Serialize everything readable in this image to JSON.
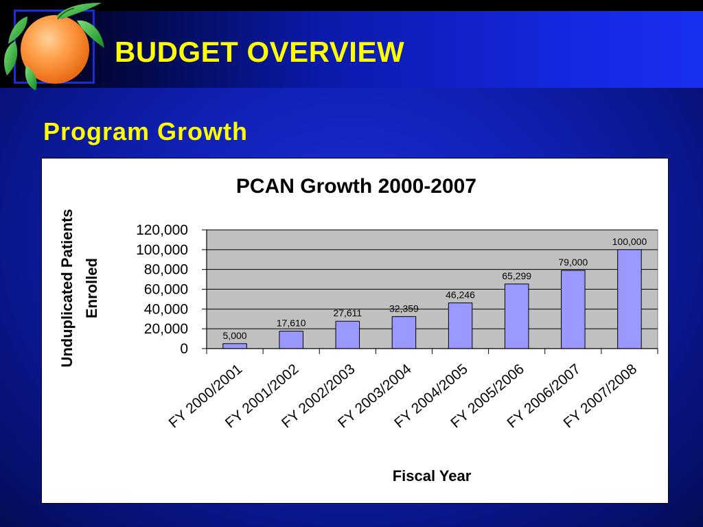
{
  "slide": {
    "title": "BUDGET OVERVIEW",
    "subtitle": "Program Growth"
  },
  "colors": {
    "title_text": "#ffff00",
    "bar_fill": "#9999ff",
    "plot_background": "#c0c0c0"
  },
  "icons": {
    "logo": "orange-fruit-with-leaves-icon"
  },
  "chart_data": {
    "type": "bar",
    "title": "PCAN Growth 2000-2007",
    "xlabel": "Fiscal Year",
    "ylabel_lines": [
      "Unduplicated Patients",
      "Enrolled"
    ],
    "categories": [
      "FY 2000/2001",
      "FY 2001/2002",
      "FY 2002/2003",
      "FY 2003/2004",
      "FY 2004/2005",
      "FY 2005/2006",
      "FY 2006/2007",
      "FY 2007/2008"
    ],
    "values": [
      5000,
      17610,
      27611,
      32359,
      46246,
      65299,
      79000,
      100000
    ],
    "data_labels": [
      "5,000",
      "17,610",
      "27,611",
      "32,359",
      "46,246",
      "65,299",
      "79,000",
      "100,000"
    ],
    "ylim": [
      0,
      120000
    ],
    "yticks": [
      0,
      20000,
      40000,
      60000,
      80000,
      100000,
      120000
    ],
    "ytick_labels": [
      "0",
      "20,000",
      "40,000",
      "60,000",
      "80,000",
      "100,000",
      "120,000"
    ],
    "grid": true,
    "legend": "none"
  }
}
